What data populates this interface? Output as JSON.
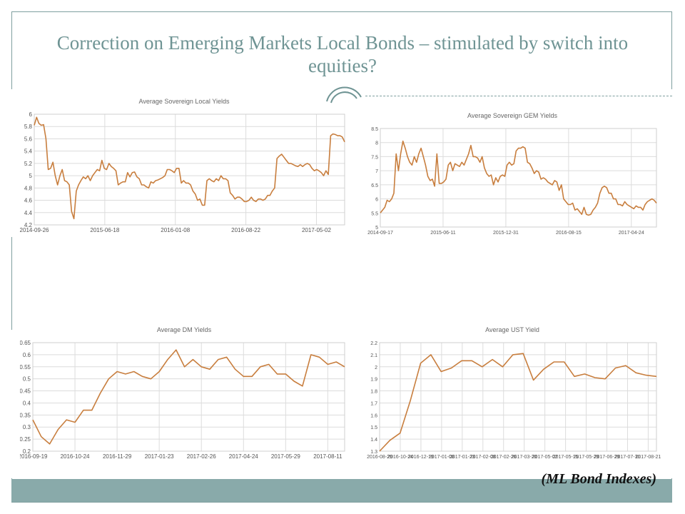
{
  "slide": {
    "title": "Correction on Emerging Markets Local Bonds – stimulated by switch into equities?",
    "footnote": "(ML Bond  Indexes)"
  },
  "colors": {
    "line": "#c87e3e",
    "frame": "#7f9f9f",
    "title": "#6f9494",
    "band": "#89aaaa"
  },
  "chart_data": [
    {
      "type": "line",
      "title": "Average Sovereign Local Yields",
      "ylim": [
        4.2,
        6.0
      ],
      "yticks": [
        "4.2",
        "4.4",
        "4.6",
        "4.8",
        "5",
        "5.2",
        "5.4",
        "5.6",
        "5.8",
        "6"
      ],
      "xticks": [
        "2014-09-26",
        "2015-06-18",
        "2016-01-08",
        "2016-08-22",
        "2017-05-02"
      ],
      "grid": true,
      "values": [
        5.82,
        5.95,
        5.85,
        5.82,
        5.83,
        5.6,
        5.1,
        5.12,
        5.22,
        5.0,
        4.85,
        5.0,
        5.1,
        4.92,
        4.9,
        4.85,
        4.42,
        4.3,
        4.75,
        4.85,
        4.92,
        4.98,
        4.95,
        5.0,
        4.92,
        5.0,
        5.05,
        5.1,
        5.08,
        5.25,
        5.12,
        5.1,
        5.2,
        5.15,
        5.12,
        5.08,
        4.85,
        4.88,
        4.9,
        4.9,
        5.05,
        4.98,
        5.05,
        5.06,
        4.98,
        4.95,
        4.85,
        4.85,
        4.82,
        4.8,
        4.9,
        4.88,
        4.92,
        4.93,
        4.95,
        4.97,
        5.0,
        5.1,
        5.1,
        5.08,
        5.05,
        5.12,
        5.12,
        4.88,
        4.92,
        4.88,
        4.88,
        4.85,
        4.75,
        4.7,
        4.6,
        4.62,
        4.52,
        4.52,
        4.92,
        4.95,
        4.92,
        4.9,
        4.95,
        4.92,
        5.0,
        4.95,
        4.95,
        4.92,
        4.72,
        4.68,
        4.62,
        4.65,
        4.65,
        4.62,
        4.58,
        4.58,
        4.6,
        4.65,
        4.6,
        4.58,
        4.62,
        4.62,
        4.6,
        4.62,
        4.68,
        4.68,
        4.75,
        4.8,
        5.28,
        5.32,
        5.35,
        5.3,
        5.25,
        5.2,
        5.2,
        5.18,
        5.16,
        5.15,
        5.18,
        5.15,
        5.18,
        5.2,
        5.18,
        5.12,
        5.08,
        5.1,
        5.08,
        5.05,
        5.0,
        5.08,
        5.02,
        5.65,
        5.68,
        5.67,
        5.65,
        5.65,
        5.63,
        5.55
      ]
    },
    {
      "type": "line",
      "title": "Average Sovereign GEM Yields",
      "ylim": [
        5.0,
        8.5
      ],
      "yticks": [
        "5",
        "5.5",
        "6",
        "6.5",
        "7",
        "7.5",
        "8",
        "8.5"
      ],
      "xticks": [
        "2014-09-17",
        "2015-06-11",
        "2015-12-31",
        "2016-08-15",
        "2017-04-24"
      ],
      "grid": true,
      "values": [
        5.5,
        5.6,
        5.7,
        5.95,
        5.9,
        6.0,
        6.2,
        7.6,
        7.0,
        7.6,
        8.05,
        7.8,
        7.5,
        7.3,
        7.2,
        7.5,
        7.3,
        7.6,
        7.8,
        7.5,
        7.2,
        6.8,
        6.65,
        6.7,
        6.45,
        7.6,
        6.55,
        6.55,
        6.6,
        6.7,
        7.2,
        7.3,
        7.0,
        7.25,
        7.2,
        7.15,
        7.3,
        7.2,
        7.4,
        7.6,
        7.9,
        7.5,
        7.5,
        7.45,
        7.3,
        7.5,
        7.1,
        6.9,
        6.8,
        6.85,
        6.5,
        6.75,
        6.6,
        6.8,
        6.85,
        6.8,
        7.2,
        7.3,
        7.2,
        7.25,
        7.7,
        7.8,
        7.8,
        7.85,
        7.8,
        7.3,
        7.25,
        7.1,
        6.9,
        7.0,
        6.95,
        6.7,
        6.75,
        6.7,
        6.6,
        6.55,
        6.5,
        6.65,
        6.6,
        6.3,
        6.5,
        6.0,
        5.9,
        5.8,
        5.8,
        5.85,
        5.6,
        5.65,
        5.55,
        5.45,
        5.7,
        5.45,
        5.42,
        5.45,
        5.6,
        5.7,
        5.85,
        6.2,
        6.4,
        6.45,
        6.4,
        6.2,
        6.2,
        6.0,
        6.0,
        5.8,
        5.8,
        5.75,
        5.9,
        5.8,
        5.75,
        5.7,
        5.65,
        5.75,
        5.7,
        5.7,
        5.6,
        5.8,
        5.9,
        5.95,
        6.0,
        5.95,
        5.85
      ]
    },
    {
      "type": "line",
      "title": "Average DM Yields",
      "ylim": [
        0.2,
        0.65
      ],
      "yticks": [
        "0.2",
        "0.25",
        "0.3",
        "0.35",
        "0.4",
        "0.45",
        "0.5",
        "0.55",
        "0.6",
        "0.65"
      ],
      "xticks": [
        "2016-09-19",
        "2016-10-24",
        "2016-11-29",
        "2017-01-23",
        "2017-02-26",
        "2017-04-24",
        "2017-05-29",
        "2017-08-11"
      ],
      "grid": true,
      "values": [
        0.33,
        0.26,
        0.23,
        0.29,
        0.33,
        0.32,
        0.37,
        0.37,
        0.44,
        0.5,
        0.53,
        0.52,
        0.53,
        0.51,
        0.5,
        0.53,
        0.58,
        0.62,
        0.55,
        0.58,
        0.55,
        0.54,
        0.58,
        0.59,
        0.54,
        0.51,
        0.51,
        0.55,
        0.56,
        0.52,
        0.52,
        0.49,
        0.47,
        0.6,
        0.59,
        0.56,
        0.57,
        0.55
      ]
    },
    {
      "type": "line",
      "title": "Average UST Yield",
      "ylim": [
        1.3,
        2.2
      ],
      "yticks": [
        "1.3",
        "1.4",
        "1.5",
        "1.6",
        "1.7",
        "1.8",
        "1.9",
        "2",
        "2.1",
        "2.2"
      ],
      "xticks": [
        "2016-08-29",
        "2016-10-24",
        "2016-12-19",
        "2017-01-08",
        "2017-01-23",
        "2017-02-08",
        "2017-02-26",
        "2017-03-20",
        "2017-05-02",
        "2017-05-15",
        "2017-05-29",
        "2017-06-29",
        "2017-07-31",
        "2017-08-21"
      ],
      "grid": true,
      "values": [
        1.3,
        1.39,
        1.45,
        1.72,
        2.03,
        2.1,
        1.96,
        1.99,
        2.05,
        2.05,
        2.0,
        2.06,
        2.0,
        2.1,
        2.11,
        1.89,
        1.98,
        2.04,
        2.04,
        1.92,
        1.94,
        1.91,
        1.9,
        1.99,
        2.01,
        1.95,
        1.93,
        1.92
      ]
    }
  ]
}
